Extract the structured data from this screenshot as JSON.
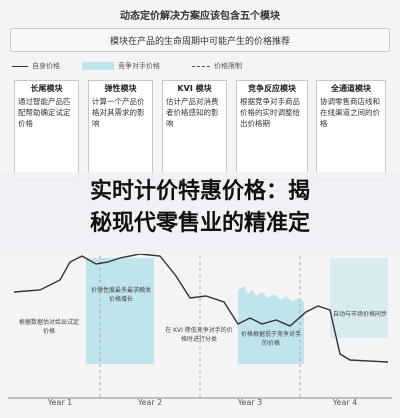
{
  "title": "动态定价解决方案应该包含五个模块",
  "subtitle": "模块在产品的生命周期中可能产生的价格推荐",
  "legend": {
    "line_label": "自身价格",
    "band_label": "竞争对手价格",
    "dashed_label": "价格限制"
  },
  "panels": [
    {
      "title": "长尾模块",
      "body": "通过智能产品匹配帮助确定试定价格"
    },
    {
      "title": "弹性模块",
      "body": "计算一个产品价格对其需求的影响"
    },
    {
      "title": "KVI 模块",
      "body": "估计产品对消费者价格感知的影响"
    },
    {
      "title": "竞争反应模块",
      "body": "根据竞争对手商品价格的实时调整给出价格期"
    },
    {
      "title": "全通道模块",
      "body": "协调零售商店线和在线渠道之间的价格"
    }
  ],
  "headline": {
    "line1": "实时计价特惠价格：揭",
    "line2": "秘现代零售业的精准定"
  },
  "captions": [
    "根据数据估对给出试定价格",
    "价弹性度最多最求触发价格增长",
    "在 KVI 降低竞争对手的价格时进行分类",
    "价格根据低于竞争对手的价格",
    "自动与市场价格同步"
  ],
  "years": [
    "Year 1",
    "Year 2",
    "Year 3",
    "Year 4"
  ],
  "colors": {
    "accent_band": "#bfe4ec",
    "line": "#333333",
    "panel_border": "#c8c8c8"
  }
}
